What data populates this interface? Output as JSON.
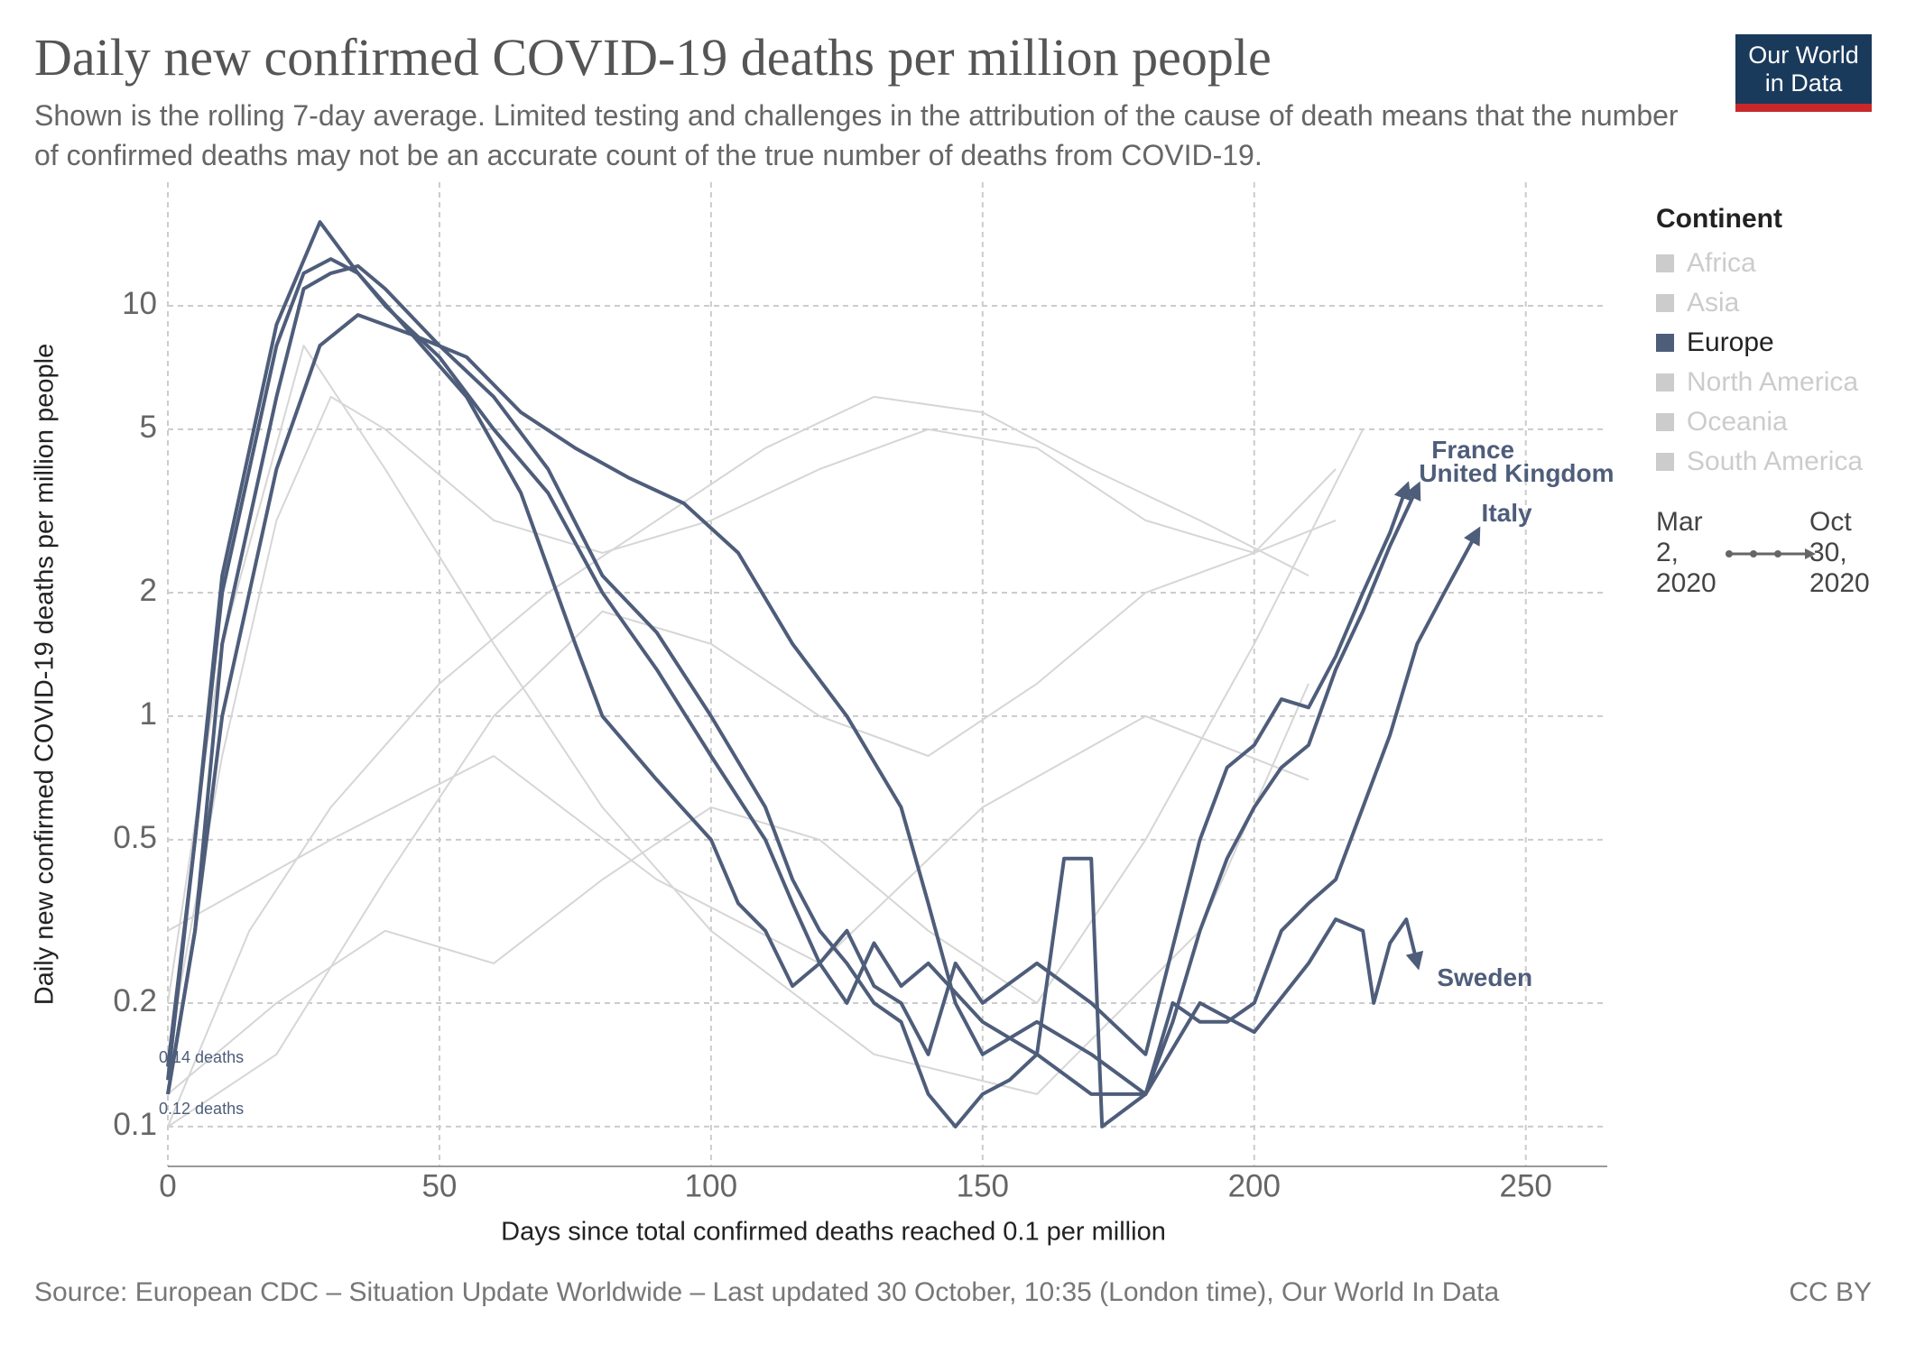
{
  "chart_data": {
    "type": "line",
    "title": "Daily new confirmed COVID-19 deaths per million people",
    "subtitle": "Shown is the rolling 7-day average. Limited testing and challenges in the attribution of the cause of death means that the number of confirmed deaths may not be an accurate count of the true number of deaths from COVID-19.",
    "logo": [
      "Our World",
      "in Data"
    ],
    "x_label": "Days since total confirmed deaths reached 0.1 per million",
    "y_label": "Daily new confirmed COVID-19 deaths per million people",
    "source": "Source: European CDC – Situation Update Worldwide – Last updated 30 October, 10:35 (London time), Our World In Data",
    "license": "CC BY",
    "log_y": true,
    "grid": true,
    "xlim": [
      0,
      265
    ],
    "ylim": [
      0.08,
      20
    ],
    "xticks": [
      0,
      50,
      100,
      150,
      200,
      250
    ],
    "yticks": [
      0.1,
      0.2,
      0.5,
      1,
      2,
      5,
      10
    ],
    "annotations": [
      "0.14 deaths",
      "0.12 deaths"
    ],
    "legend": {
      "title": "Continent",
      "items": [
        "Africa",
        "Asia",
        "Europe",
        "North America",
        "Oceania",
        "South America"
      ],
      "active": "Europe",
      "active_color": "#4e5d7a",
      "inactive_color": "#cccccc"
    },
    "timeline": {
      "start": "Mar 2, 2020",
      "end": "Oct 30, 2020"
    },
    "series": [
      {
        "color": "#d6d6d6",
        "x": [
          0,
          10,
          20,
          30,
          40,
          60,
          80,
          100,
          120,
          140,
          160,
          180,
          200,
          215
        ],
        "values": [
          0.15,
          0.8,
          3,
          6,
          5,
          3,
          2.5,
          3,
          4,
          5,
          4.5,
          3,
          2.5,
          3
        ]
      },
      {
        "color": "#d6d6d6",
        "x": [
          0,
          15,
          30,
          50,
          70,
          90,
          110,
          130,
          150,
          170,
          190,
          210
        ],
        "values": [
          0.1,
          0.3,
          0.6,
          1.2,
          2,
          3,
          4.5,
          6,
          5.5,
          4,
          3,
          2.2
        ]
      },
      {
        "color": "#d6d6d6",
        "x": [
          0,
          20,
          40,
          60,
          80,
          100,
          120,
          140,
          160,
          180,
          200,
          220
        ],
        "values": [
          0.12,
          0.2,
          0.3,
          0.25,
          0.4,
          0.6,
          0.5,
          0.3,
          0.2,
          0.5,
          1.5,
          5
        ]
      },
      {
        "color": "#d6d6d6",
        "x": [
          0,
          10,
          25,
          40,
          60,
          80,
          100,
          130,
          160,
          190,
          210
        ],
        "values": [
          0.2,
          1.5,
          8,
          4,
          1.5,
          0.6,
          0.3,
          0.15,
          0.12,
          0.3,
          1.2
        ]
      },
      {
        "color": "#d6d6d6",
        "x": [
          0,
          20,
          40,
          60,
          80,
          100,
          120,
          140,
          160,
          180,
          200,
          215
        ],
        "values": [
          0.1,
          0.15,
          0.4,
          1,
          1.8,
          1.5,
          1,
          0.8,
          1.2,
          2,
          2.5,
          4
        ]
      },
      {
        "color": "#d6d6d6",
        "x": [
          0,
          30,
          60,
          90,
          120,
          150,
          180,
          210
        ],
        "values": [
          0.3,
          0.5,
          0.8,
          0.4,
          0.25,
          0.6,
          1,
          0.7
        ]
      },
      {
        "name": "France",
        "color": "#4e5d7a",
        "x": [
          0,
          5,
          10,
          20,
          25,
          30,
          35,
          40,
          50,
          60,
          70,
          80,
          90,
          100,
          110,
          115,
          120,
          125,
          130,
          135,
          140,
          145,
          150,
          160,
          170,
          180,
          190,
          195,
          200,
          205,
          210,
          215,
          220,
          225,
          228
        ],
        "values": [
          0.14,
          0.5,
          2,
          8,
          12,
          13,
          12,
          10,
          7.5,
          5,
          3.5,
          2,
          1.3,
          0.8,
          0.5,
          0.35,
          0.25,
          0.3,
          0.22,
          0.2,
          0.15,
          0.25,
          0.2,
          0.25,
          0.2,
          0.15,
          0.5,
          0.75,
          0.85,
          1.1,
          1.05,
          1.4,
          2,
          2.8,
          3.6
        ]
      },
      {
        "name": "United Kingdom",
        "color": "#4e5d7a",
        "x": [
          0,
          5,
          10,
          20,
          25,
          30,
          35,
          40,
          50,
          60,
          70,
          80,
          90,
          100,
          110,
          115,
          120,
          125,
          130,
          135,
          140,
          145,
          150,
          155,
          160,
          170,
          180,
          185,
          190,
          195,
          200,
          205,
          210,
          215,
          220,
          225,
          230
        ],
        "values": [
          0.12,
          0.3,
          1.5,
          6,
          11,
          12,
          12.5,
          11,
          8,
          6,
          4,
          2.2,
          1.6,
          1,
          0.6,
          0.4,
          0.3,
          0.25,
          0.2,
          0.18,
          0.12,
          0.1,
          0.12,
          0.13,
          0.15,
          0.12,
          0.12,
          0.18,
          0.3,
          0.45,
          0.6,
          0.75,
          0.85,
          1.3,
          1.8,
          2.6,
          3.6
        ]
      },
      {
        "name": "Italy",
        "color": "#4e5d7a",
        "x": [
          0,
          5,
          10,
          20,
          28,
          35,
          45,
          55,
          65,
          75,
          80,
          90,
          100,
          105,
          110,
          115,
          120,
          125,
          130,
          135,
          140,
          150,
          160,
          165,
          170,
          172,
          180,
          185,
          190,
          195,
          200,
          205,
          210,
          215,
          220,
          225,
          230,
          235,
          241
        ],
        "values": [
          0.13,
          0.5,
          2.2,
          9,
          16,
          12,
          8.5,
          6,
          3.5,
          1.5,
          1,
          0.7,
          0.5,
          0.35,
          0.3,
          0.22,
          0.25,
          0.2,
          0.28,
          0.22,
          0.25,
          0.18,
          0.15,
          0.45,
          0.45,
          0.1,
          0.12,
          0.2,
          0.18,
          0.18,
          0.2,
          0.3,
          0.35,
          0.4,
          0.6,
          0.9,
          1.5,
          2,
          2.8
        ]
      },
      {
        "name": "Sweden",
        "color": "#4e5d7a",
        "x": [
          0,
          5,
          10,
          20,
          28,
          35,
          45,
          55,
          65,
          75,
          85,
          95,
          105,
          115,
          125,
          135,
          140,
          145,
          150,
          160,
          170,
          180,
          190,
          200,
          210,
          215,
          220,
          222,
          225,
          228,
          230
        ],
        "values": [
          0.12,
          0.3,
          1,
          4,
          8,
          9.5,
          8.5,
          7.5,
          5.5,
          4.5,
          3.8,
          3.3,
          2.5,
          1.5,
          1,
          0.6,
          0.35,
          0.2,
          0.15,
          0.18,
          0.15,
          0.12,
          0.2,
          0.17,
          0.25,
          0.32,
          0.3,
          0.2,
          0.28,
          0.32,
          0.25
        ]
      }
    ]
  }
}
